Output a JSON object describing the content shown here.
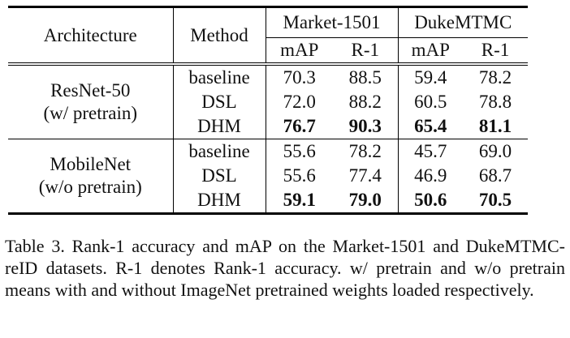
{
  "table": {
    "header": {
      "architecture": "Architecture",
      "method": "Method",
      "datasets": [
        "Market-1501",
        "DukeMTMC"
      ],
      "metrics": [
        "mAP",
        "R-1",
        "mAP",
        "R-1"
      ]
    },
    "groups": [
      {
        "architecture": [
          "ResNet-50",
          "(w/ pretrain)"
        ],
        "rows": [
          {
            "method": "baseline",
            "values": [
              "70.3",
              "88.5",
              "59.4",
              "78.2"
            ],
            "bold": false
          },
          {
            "method": "DSL",
            "values": [
              "72.0",
              "88.2",
              "60.5",
              "78.8"
            ],
            "bold": false
          },
          {
            "method": "DHM",
            "values": [
              "76.7",
              "90.3",
              "65.4",
              "81.1"
            ],
            "bold": true
          }
        ]
      },
      {
        "architecture": [
          "MobileNet",
          "(w/o pretrain)"
        ],
        "rows": [
          {
            "method": "baseline",
            "values": [
              "55.6",
              "78.2",
              "45.7",
              "69.0"
            ],
            "bold": false
          },
          {
            "method": "DSL",
            "values": [
              "55.6",
              "77.4",
              "46.9",
              "68.7"
            ],
            "bold": false
          },
          {
            "method": "DHM",
            "values": [
              "59.1",
              "79.0",
              "50.6",
              "70.5"
            ],
            "bold": true
          }
        ]
      }
    ]
  },
  "caption": "Table 3. Rank-1 accuracy and mAP on the Market-1501 and DukeMTMC-reID datasets. R-1 denotes Rank-1 accuracy. w/ pretrain and w/o pretrain means with and without ImageNet pretrained weights loaded respectively."
}
